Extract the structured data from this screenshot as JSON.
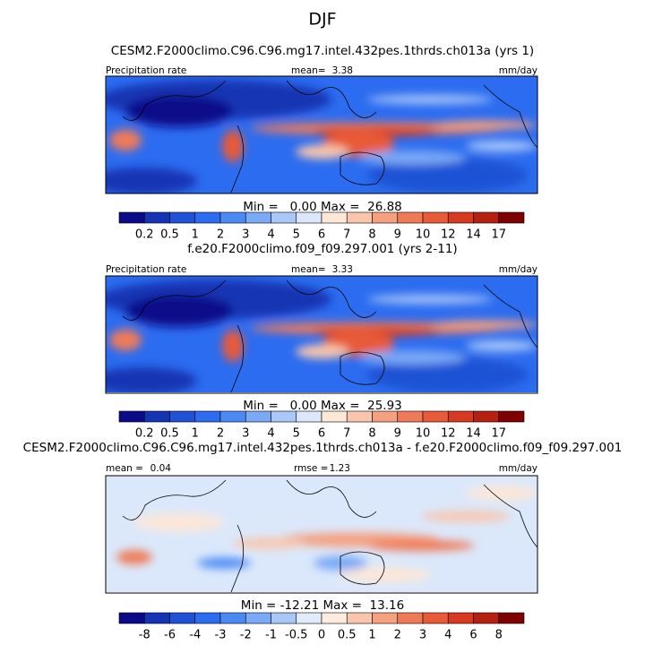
{
  "title": "DJF",
  "panels": [
    {
      "title": "CESM2.F2000climo.C96.C96.mg17.intel.432pes.1thrds.ch013a (yrs 1)",
      "left_label": "Precipitation rate",
      "mean_label": "mean=",
      "mean": 3.38,
      "units": "mm/day",
      "min_max": "Min =   0.00 Max =  26.88",
      "colorbar": {
        "labels": [
          0.2,
          0.5,
          1,
          2,
          3,
          4,
          5,
          6,
          7,
          8,
          9,
          10,
          12,
          14,
          17
        ],
        "colors": [
          "#0b0b8a",
          "#1434b4",
          "#1f52d6",
          "#2c6cf0",
          "#4b89f5",
          "#7aa9f6",
          "#a9c8f8",
          "#dbe8fb",
          "#fde7d6",
          "#f9c6ad",
          "#f5a07f",
          "#ef7a58",
          "#e85a38",
          "#d73a20",
          "#b52010",
          "#7e0000"
        ]
      }
    },
    {
      "title": "f.e20.F2000climo.f09_f09.297.001 (yrs 2-11)",
      "left_label": "Precipitation rate",
      "mean_label": "mean=",
      "mean": 3.33,
      "units": "mm/day",
      "min_max": "Min =   0.00 Max =  25.93",
      "colorbar": {
        "labels": [
          0.2,
          0.5,
          1,
          2,
          3,
          4,
          5,
          6,
          7,
          8,
          9,
          10,
          12,
          14,
          17
        ],
        "colors": [
          "#0b0b8a",
          "#1434b4",
          "#1f52d6",
          "#2c6cf0",
          "#4b89f5",
          "#7aa9f6",
          "#a9c8f8",
          "#dbe8fb",
          "#fde7d6",
          "#f9c6ad",
          "#f5a07f",
          "#ef7a58",
          "#e85a38",
          "#d73a20",
          "#b52010",
          "#7e0000"
        ]
      }
    },
    {
      "title": "CESM2.F2000climo.C96.C96.mg17.intel.432pes.1thrds.ch013a - f.e20.F2000climo.f09_f09.297.001",
      "mean_label": "mean =",
      "mean": 0.04,
      "rmse_label": "rmse =",
      "rmse": 1.23,
      "units": "mm/day",
      "min_max": "Min = -12.21 Max =  13.16",
      "colorbar": {
        "labels": [
          -8,
          -6,
          -4,
          -3,
          -2,
          -1,
          -0.5,
          0,
          0.5,
          1,
          2,
          3,
          4,
          6,
          8
        ],
        "colors": [
          "#0b0b8a",
          "#1434b4",
          "#1f52d6",
          "#2c6cf0",
          "#4b89f5",
          "#7aa9f6",
          "#a9c8f8",
          "#e1ecfb",
          "#fdebe0",
          "#f9c6ad",
          "#f5a07f",
          "#ef7a58",
          "#e85a38",
          "#d73a20",
          "#b52010",
          "#7e0000"
        ]
      }
    }
  ]
}
